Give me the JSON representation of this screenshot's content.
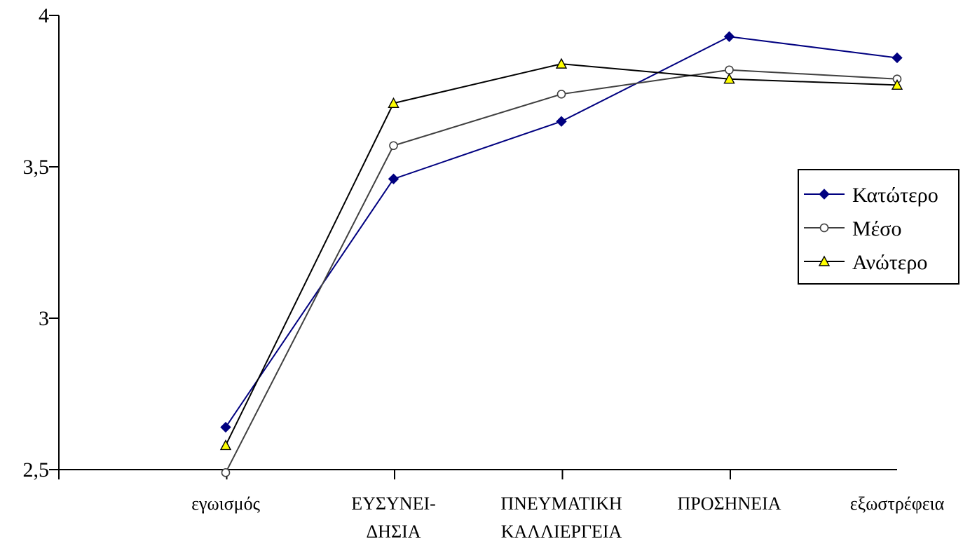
{
  "chart_data": {
    "type": "line",
    "title": "",
    "xlabel": "",
    "ylabel": "",
    "categories": [
      [
        "εγωισμός"
      ],
      [
        "ΕΥΣΥΝΕΙ-",
        "ΔΗΣΙΑ"
      ],
      [
        "ΠΝΕΥΜΑΤΙΚΗ",
        "ΚΑΛΛΙΕΡΓΕΙΑ"
      ],
      [
        "ΠΡΟΣΗΝΕΙΑ"
      ],
      [
        "εξωστρέφεια"
      ]
    ],
    "ylim": [
      2.5,
      4
    ],
    "yticks": [
      2.5,
      3,
      3.5,
      4
    ],
    "ytick_labels": [
      "2,5",
      "3",
      "3,5",
      "4"
    ],
    "grid": false,
    "legend_position": "right",
    "series": [
      {
        "name": "Κατώτερο",
        "marker": "diamond",
        "color": "#000080",
        "marker_fill": "#000080",
        "values": [
          2.64,
          3.46,
          3.65,
          3.93,
          3.86
        ]
      },
      {
        "name": "Μέσο",
        "marker": "circle",
        "color": "#404040",
        "marker_fill": "#ffffff",
        "values": [
          2.49,
          3.57,
          3.74,
          3.82,
          3.79
        ]
      },
      {
        "name": "Ανώτερο",
        "marker": "triangle",
        "color": "#000000",
        "marker_fill": "#ffff00",
        "values": [
          2.58,
          3.71,
          3.84,
          3.79,
          3.77
        ]
      }
    ]
  }
}
